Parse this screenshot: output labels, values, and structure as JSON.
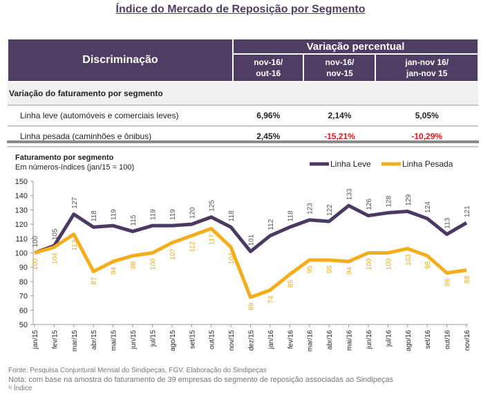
{
  "title": "Índice do Mercado de Reposição por Segmento",
  "table": {
    "header_disc": "Discriminação",
    "header_group": "Variação percentual",
    "columns": [
      [
        "nov-16/",
        "out-16"
      ],
      [
        "nov-16/",
        "nov-15"
      ],
      [
        "jan-nov 16/",
        "jan-nov 15"
      ]
    ],
    "section": "Variação do faturamento por segmento",
    "rows": [
      {
        "label": "Linha leve (automóveis e comerciais leves)",
        "values": [
          "6,96%",
          "2,14%",
          "5,05%"
        ]
      },
      {
        "label": "Linha pesada (caminhões e ônibus)",
        "values": [
          "2,45%",
          "-15,21%",
          "-10,29%"
        ]
      }
    ]
  },
  "chart_data": {
    "type": "line",
    "title": "Faturamento por segmento",
    "subtitle": "Em números-índices (jan/15 = 100)",
    "categories": [
      "jan/15",
      "fev/15",
      "mar/15",
      "abr/15",
      "mai/15",
      "jun/15",
      "jul/15",
      "ago/15",
      "set/15",
      "out/15",
      "nov/15",
      "dez/15",
      "jan/16",
      "fev/16",
      "mar/16",
      "abr/16",
      "mai/16",
      "jun/16",
      "jul/16",
      "ago/16",
      "set/16",
      "out/16",
      "nov/16"
    ],
    "ylim": [
      50,
      150
    ],
    "yticks": [
      50,
      60,
      70,
      80,
      90,
      100,
      110,
      120,
      130,
      140,
      150
    ],
    "legend": "top-right",
    "grid": false,
    "series": [
      {
        "name": "Linha Leve",
        "color": "#4a3a63",
        "values": [
          100,
          105,
          127,
          118,
          119,
          115,
          119,
          119,
          120,
          125,
          118,
          101,
          112,
          118,
          123,
          122,
          133,
          126,
          128,
          129,
          124,
          113,
          121
        ]
      },
      {
        "name": "Linha Pesada",
        "color": "#f5ad1b",
        "values": [
          100,
          104,
          113,
          87,
          94,
          98,
          100,
          107,
          112,
          117,
          104,
          69,
          74,
          85,
          95,
          95,
          94,
          100,
          100,
          103,
          98,
          86,
          88
        ]
      }
    ]
  },
  "footer": {
    "source": "Fonte: Pesquisa Conjuntural Mensal do Sindipeças, FGV. Elaboração do Sindipeças",
    "note": "Nota: com base na amostra do faturamento de 39 empresas do segmento de reposição associadas ao Sindipeças",
    "index": "¹ʲ Índice"
  }
}
